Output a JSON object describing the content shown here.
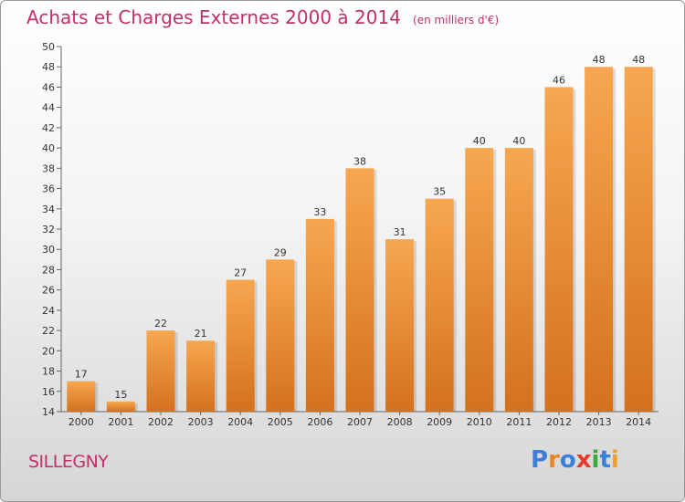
{
  "chart_data": {
    "type": "bar",
    "title": "Achats et Charges Externes 2000 à 2014",
    "unit_label": "(en milliers d'€)",
    "categories": [
      "2000",
      "2001",
      "2002",
      "2003",
      "2004",
      "2005",
      "2006",
      "2007",
      "2008",
      "2009",
      "2010",
      "2011",
      "2012",
      "2013",
      "2014"
    ],
    "values": [
      17,
      15,
      22,
      21,
      27,
      29,
      33,
      38,
      31,
      35,
      40,
      40,
      46,
      48,
      48
    ],
    "ylim": [
      14,
      50
    ],
    "yticks": [
      14,
      16,
      18,
      20,
      22,
      24,
      26,
      28,
      30,
      32,
      34,
      36,
      38,
      40,
      42,
      44,
      46,
      48,
      50
    ],
    "grid": false,
    "bar_color_top": "#f7a750",
    "bar_color_bottom": "#d4711d"
  },
  "commune": "SILLEGNY",
  "logo": {
    "text": "Proxiti",
    "colors": [
      "#3d7fd6",
      "#e8862b",
      "#3d7fd6",
      "#e33b2e",
      "#3aab3a",
      "#3d7fd6",
      "#f0a020"
    ]
  }
}
